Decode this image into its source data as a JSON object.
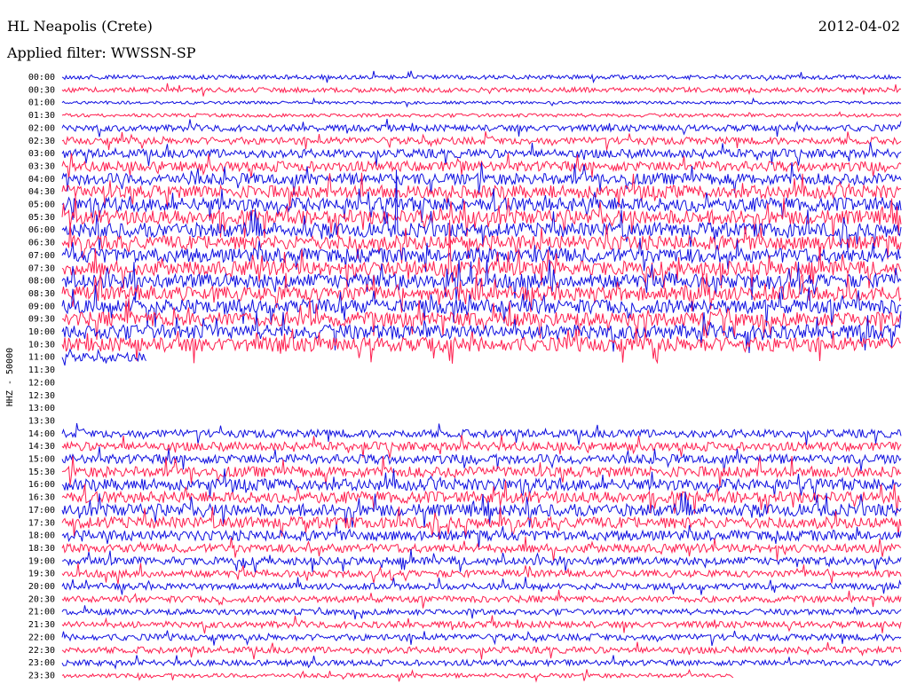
{
  "header": {
    "station": "HL Neapolis (Crete)",
    "date": "2012-04-02",
    "filter": "Applied filter: WWSSN-SP"
  },
  "chart_data": {
    "type": "line",
    "title": "HL Neapolis (Crete)",
    "subtitle": "Applied filter: WWSSN-SP",
    "ylabel": "HHZ - 50000",
    "colors": [
      "#1010e0",
      "#ff1f4f"
    ],
    "row_labels": [
      "00:00",
      "00:30",
      "01:00",
      "01:30",
      "02:00",
      "02:30",
      "03:00",
      "03:30",
      "04:00",
      "04:30",
      "05:00",
      "05:30",
      "06:00",
      "06:30",
      "07:00",
      "07:30",
      "08:00",
      "08:30",
      "09:00",
      "09:30",
      "10:00",
      "10:30",
      "11:00",
      "11:30",
      "12:00",
      "12:30",
      "13:00",
      "13:30",
      "14:00",
      "14:30",
      "15:00",
      "15:30",
      "16:00",
      "16:30",
      "17:00",
      "17:30",
      "18:00",
      "18:30",
      "19:00",
      "19:30",
      "20:00",
      "20:30",
      "21:00",
      "21:30",
      "22:00",
      "22:30",
      "23:00",
      "23:30"
    ],
    "row_activity": [
      0.3,
      0.35,
      0.2,
      0.25,
      0.45,
      0.5,
      0.6,
      0.7,
      0.8,
      0.9,
      0.95,
      1.0,
      1.0,
      1.0,
      1.0,
      1.0,
      1.0,
      1.0,
      1.0,
      1.0,
      1.0,
      1.0,
      0.6,
      0,
      0,
      0,
      0,
      0,
      0.55,
      0.6,
      0.65,
      0.75,
      0.8,
      0.8,
      0.85,
      0.8,
      0.7,
      0.6,
      0.55,
      0.5,
      0.45,
      0.45,
      0.4,
      0.45,
      0.45,
      0.45,
      0.4,
      0.3
    ],
    "row_coverage": [
      1,
      1,
      1,
      1,
      1,
      1,
      1,
      1,
      1,
      1,
      1,
      1,
      1,
      1,
      1,
      1,
      1,
      1,
      1,
      1,
      1,
      1,
      0.1,
      0,
      0,
      0,
      0,
      0,
      1,
      1,
      1,
      1,
      1,
      1,
      1,
      1,
      1,
      1,
      1,
      1,
      1,
      1,
      1,
      1,
      1,
      1,
      1,
      0.8
    ]
  }
}
